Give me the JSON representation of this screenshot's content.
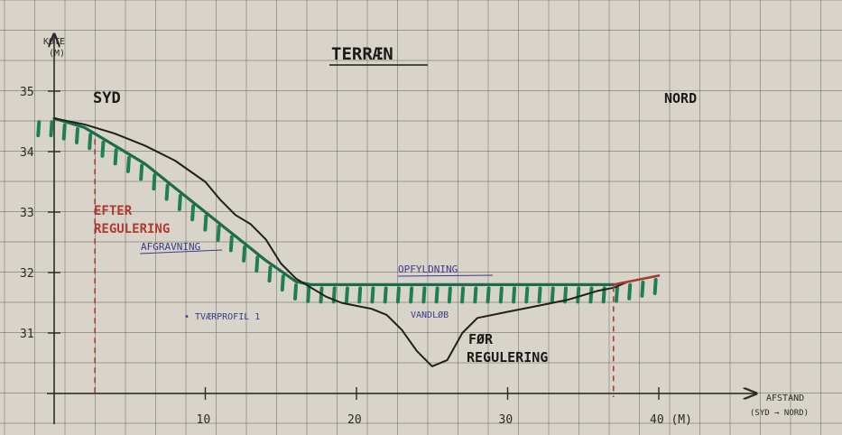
{
  "title": "TERRÆN",
  "side_labels": {
    "south": "SYD",
    "north": "NORD"
  },
  "y_axis": {
    "label_line1": "KOTE",
    "label_line2": "(M)"
  },
  "x_axis": {
    "label_line1": "AFSTAND",
    "label_line2": "(SYD → NORD)"
  },
  "annotations": {
    "after_line1": "EFTER",
    "after_line2": "REGULERING",
    "before_line1": "FØR",
    "before_line2": "REGULERING",
    "excavation": "AFGRAVNING",
    "fill": "OPFYLDNING",
    "stream": "VANDLØB",
    "cross_section": "• TVÆRPROFIL 1"
  },
  "colors": {
    "paper": "#d9d4c9",
    "grid": "#5f5f5f",
    "before_line": "#1f1f1f",
    "after_line": "#1d6b4a",
    "after_hatch": "#1e7f53",
    "after_text": "#b03a2e",
    "annotation_blue": "#3b3a8a",
    "marker_red": "#a43b2f"
  },
  "chart_data": {
    "type": "line",
    "title": "TERRÆN",
    "xlabel": "AFSTAND (SYD → NORD)",
    "ylabel": "KOTE (M)",
    "x_ticks": [
      {
        "value": 10,
        "label": "10"
      },
      {
        "value": 20,
        "label": "20"
      },
      {
        "value": 30,
        "label": "30"
      },
      {
        "value": 40,
        "label": "40 (M)"
      }
    ],
    "y_ticks": [
      {
        "value": 35,
        "label": "35"
      },
      {
        "value": 34,
        "label": "34"
      },
      {
        "value": 33,
        "label": "33"
      },
      {
        "value": 32,
        "label": "32"
      },
      {
        "value": 31,
        "label": "31"
      }
    ],
    "xlim": [
      0,
      42
    ],
    "ylim": [
      30,
      35.6
    ],
    "grid": true,
    "series": [
      {
        "name": "FØR REGULERING",
        "points": [
          [
            0,
            34.55
          ],
          [
            2,
            34.45
          ],
          [
            4,
            34.3
          ],
          [
            6,
            34.1
          ],
          [
            8,
            33.85
          ],
          [
            10,
            33.5
          ],
          [
            11,
            33.2
          ],
          [
            12,
            32.95
          ],
          [
            13,
            32.8
          ],
          [
            14,
            32.55
          ],
          [
            15,
            32.15
          ],
          [
            16,
            31.9
          ],
          [
            17,
            31.75
          ],
          [
            18,
            31.6
          ],
          [
            19,
            31.5
          ],
          [
            20,
            31.45
          ],
          [
            21,
            31.4
          ],
          [
            22,
            31.3
          ],
          [
            23,
            31.05
          ],
          [
            24,
            30.7
          ],
          [
            25,
            30.45
          ],
          [
            26,
            30.55
          ],
          [
            27,
            31.0
          ],
          [
            28,
            31.25
          ],
          [
            30,
            31.35
          ],
          [
            32,
            31.45
          ],
          [
            34,
            31.55
          ],
          [
            36,
            31.7
          ],
          [
            37,
            31.75
          ],
          [
            38,
            31.85
          ],
          [
            40,
            31.95
          ]
        ]
      },
      {
        "name": "EFTER REGULERING",
        "points": [
          [
            0,
            34.55
          ],
          [
            2,
            34.4
          ],
          [
            4,
            34.1
          ],
          [
            6,
            33.8
          ],
          [
            8,
            33.4
          ],
          [
            10,
            33.0
          ],
          [
            12,
            32.6
          ],
          [
            14,
            32.2
          ],
          [
            16,
            31.85
          ],
          [
            17,
            31.8
          ],
          [
            22,
            31.8
          ],
          [
            28,
            31.8
          ],
          [
            33,
            31.8
          ],
          [
            37,
            31.8
          ],
          [
            40,
            31.95
          ]
        ]
      }
    ]
  }
}
